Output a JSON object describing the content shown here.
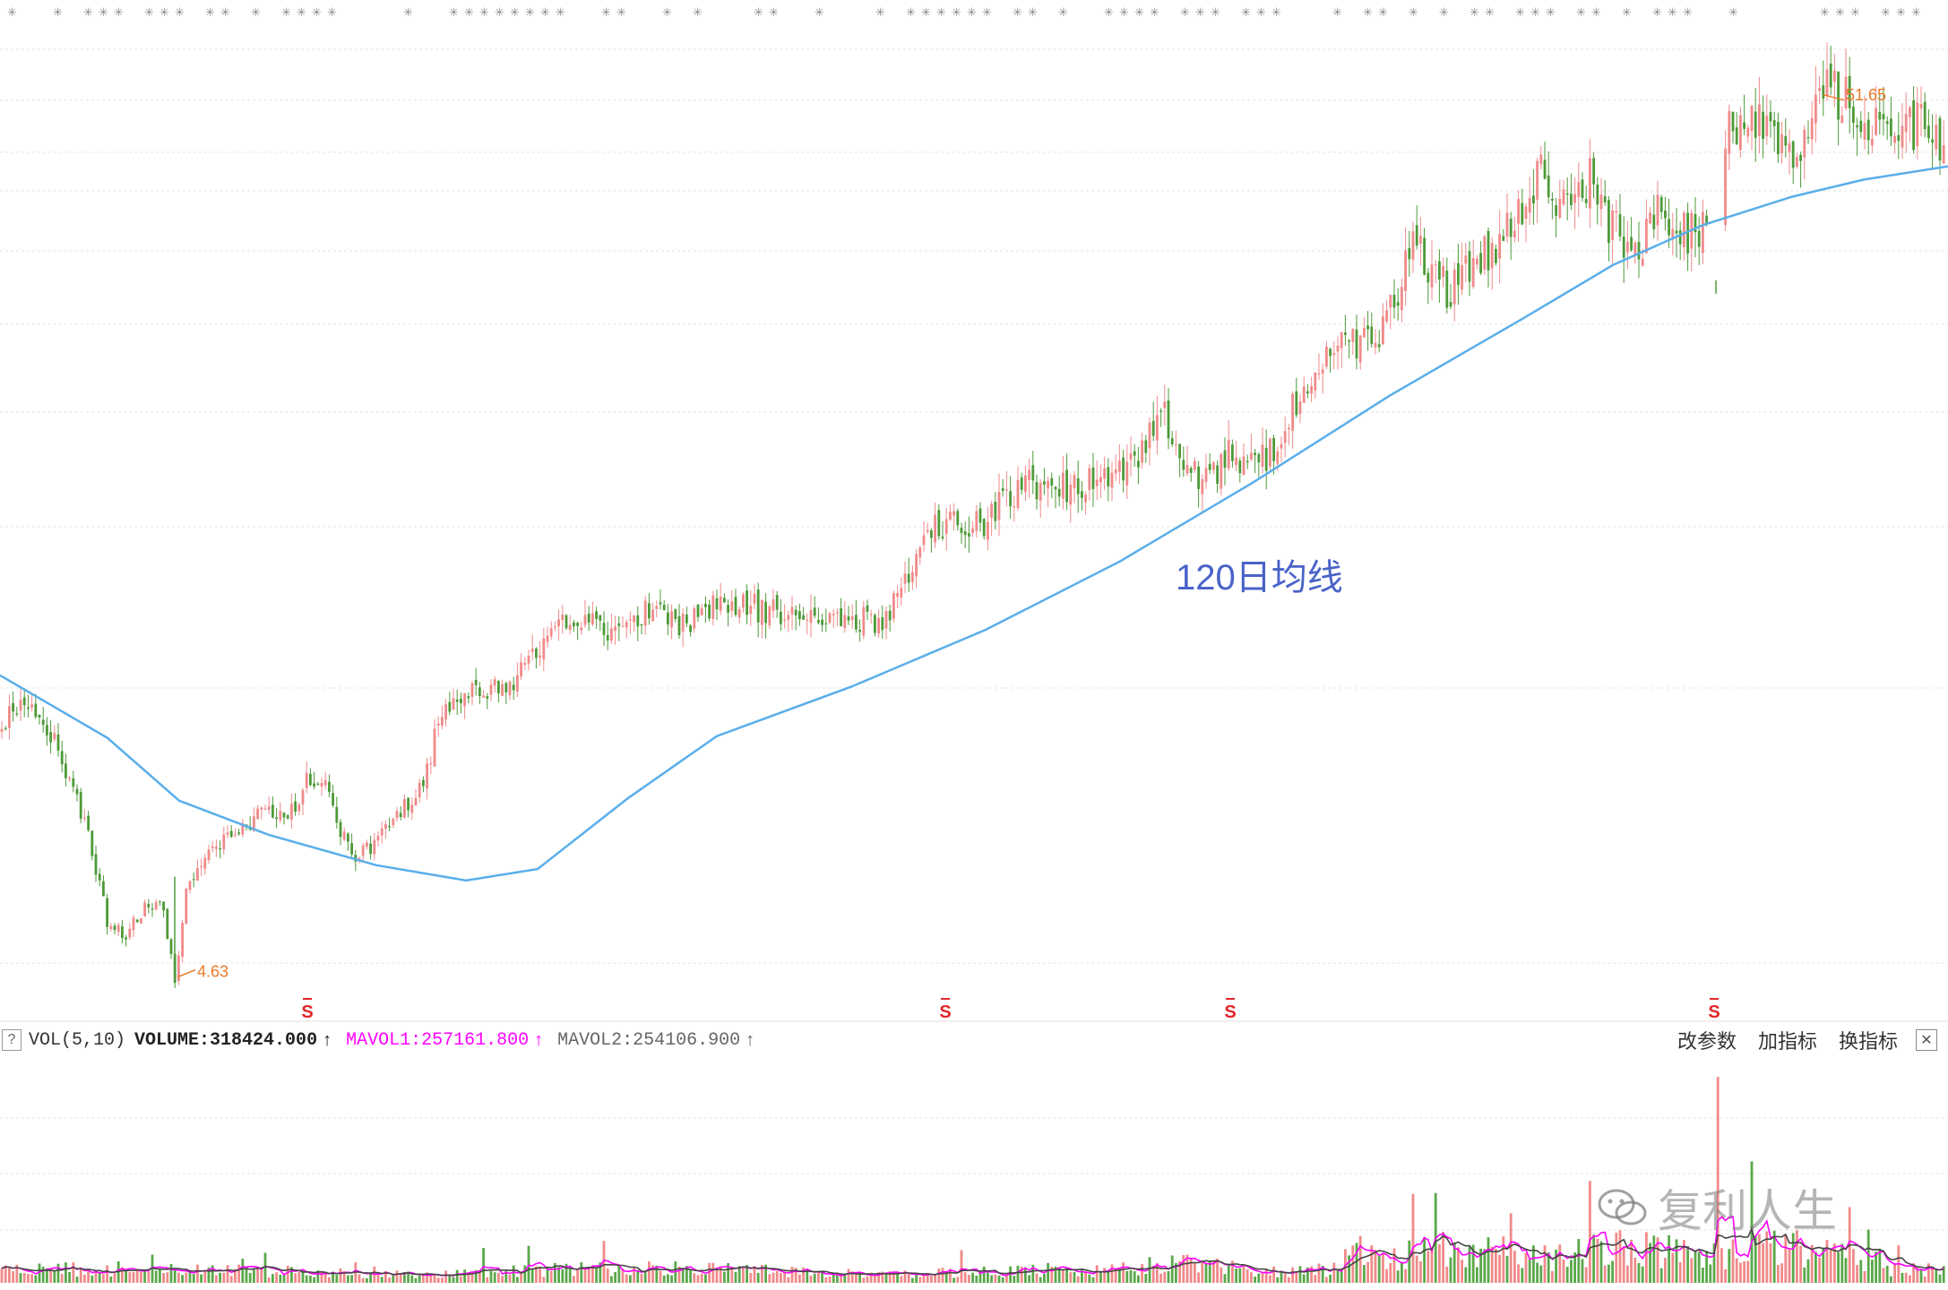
{
  "chart_data": {
    "type": "candlestick",
    "title": "",
    "xlabel": "",
    "ylabel": "",
    "ylim": [
      4.0,
      54.0
    ],
    "price_low_marker": "4.63",
    "price_high_marker": "51.65",
    "ma_line_label": "120日均线",
    "ma120": [
      [
        0,
        20.8
      ],
      [
        120,
        17.5
      ],
      [
        200,
        14.2
      ],
      [
        300,
        12.4
      ],
      [
        420,
        10.8
      ],
      [
        520,
        10.0
      ],
      [
        600,
        10.6
      ],
      [
        700,
        14.3
      ],
      [
        800,
        17.6
      ],
      [
        950,
        20.2
      ],
      [
        1100,
        23.2
      ],
      [
        1250,
        26.8
      ],
      [
        1400,
        31.0
      ],
      [
        1550,
        35.5
      ],
      [
        1700,
        39.6
      ],
      [
        1800,
        42.4
      ],
      [
        1900,
        44.5
      ],
      [
        2000,
        46.0
      ],
      [
        2080,
        46.9
      ],
      [
        2174,
        47.6
      ]
    ],
    "price_path": [
      [
        0,
        17.8
      ],
      [
        25,
        19.8
      ],
      [
        50,
        18.5
      ],
      [
        80,
        15.0
      ],
      [
        100,
        12.2
      ],
      [
        120,
        7.8
      ],
      [
        140,
        7.0
      ],
      [
        160,
        8.5
      ],
      [
        180,
        9.0
      ],
      [
        195,
        4.63
      ],
      [
        210,
        10.0
      ],
      [
        240,
        12.0
      ],
      [
        270,
        12.5
      ],
      [
        290,
        13.5
      ],
      [
        320,
        13.2
      ],
      [
        345,
        15.5
      ],
      [
        365,
        15.0
      ],
      [
        380,
        12.4
      ],
      [
        400,
        11.2
      ],
      [
        430,
        12.5
      ],
      [
        460,
        14.5
      ],
      [
        480,
        16.0
      ],
      [
        490,
        18.8
      ],
      [
        520,
        19.8
      ],
      [
        560,
        20.0
      ],
      [
        600,
        22.0
      ],
      [
        640,
        24.0
      ],
      [
        680,
        22.8
      ],
      [
        720,
        24.0
      ],
      [
        770,
        23.5
      ],
      [
        800,
        24.8
      ],
      [
        830,
        24.5
      ],
      [
        870,
        24.0
      ],
      [
        910,
        24.0
      ],
      [
        960,
        23.8
      ],
      [
        990,
        23.5
      ],
      [
        1010,
        26.0
      ],
      [
        1040,
        28.5
      ],
      [
        1070,
        29.0
      ],
      [
        1100,
        28.8
      ],
      [
        1130,
        30.5
      ],
      [
        1160,
        31.0
      ],
      [
        1180,
        30.5
      ],
      [
        1210,
        31.0
      ],
      [
        1250,
        31.5
      ],
      [
        1280,
        33.0
      ],
      [
        1300,
        34.5
      ],
      [
        1320,
        32.0
      ],
      [
        1345,
        30.8
      ],
      [
        1370,
        32.5
      ],
      [
        1400,
        31.8
      ],
      [
        1420,
        32.5
      ],
      [
        1440,
        34.8
      ],
      [
        1470,
        37.0
      ],
      [
        1500,
        38.0
      ],
      [
        1540,
        39.0
      ],
      [
        1560,
        41.0
      ],
      [
        1580,
        43.5
      ],
      [
        1600,
        41.8
      ],
      [
        1620,
        41.0
      ],
      [
        1650,
        42.5
      ],
      [
        1680,
        43.8
      ],
      [
        1700,
        45.5
      ],
      [
        1720,
        47.0
      ],
      [
        1740,
        45.0
      ],
      [
        1760,
        46.5
      ],
      [
        1775,
        47.0
      ],
      [
        1790,
        45.0
      ],
      [
        1810,
        44.0
      ],
      [
        1830,
        43.0
      ],
      [
        1850,
        45.5
      ],
      [
        1870,
        44.3
      ],
      [
        1890,
        44.0
      ],
      [
        1910,
        45.5
      ],
      [
        1930,
        49.5
      ],
      [
        1960,
        50.0
      ],
      [
        1990,
        48.5
      ],
      [
        2010,
        49.0
      ],
      [
        2030,
        51.65
      ],
      [
        2060,
        51.2
      ],
      [
        2090,
        49.5
      ],
      [
        2120,
        50.0
      ],
      [
        2150,
        49.5
      ],
      [
        2174,
        47.5
      ]
    ],
    "gap_marker_x": 1915
  },
  "signal_markers": [
    {
      "x": 343,
      "label": "S"
    },
    {
      "x": 1055,
      "label": "S"
    },
    {
      "x": 1373,
      "label": "S"
    },
    {
      "x": 1913,
      "label": "S"
    }
  ],
  "volume_panel": {
    "help_label": "?",
    "indicator": "VOL(5,10)",
    "volume_label": "VOLUME:318424.000",
    "volume_arrow": "↑",
    "mavol1_label": "MAVOL1:257161.800",
    "mavol1_arrow": "↑",
    "mavol2_label": "MAVOL2:254106.900",
    "mavol2_arrow": "↑",
    "tools": [
      "改参数",
      "加指标",
      "换指标"
    ],
    "close": "✕",
    "colors": {
      "mavol1": "#ff00ff",
      "mavol2": "#444444",
      "up": "#f08a8a",
      "down": "#5aa84a"
    }
  },
  "colors": {
    "up": "#f08a8a",
    "down": "#4d9a38",
    "ma": "#5aaeea",
    "marker": "#e87a2a",
    "signal": "#e0262a"
  },
  "top_bar_glyph": "✳",
  "watermark": "复利人生"
}
